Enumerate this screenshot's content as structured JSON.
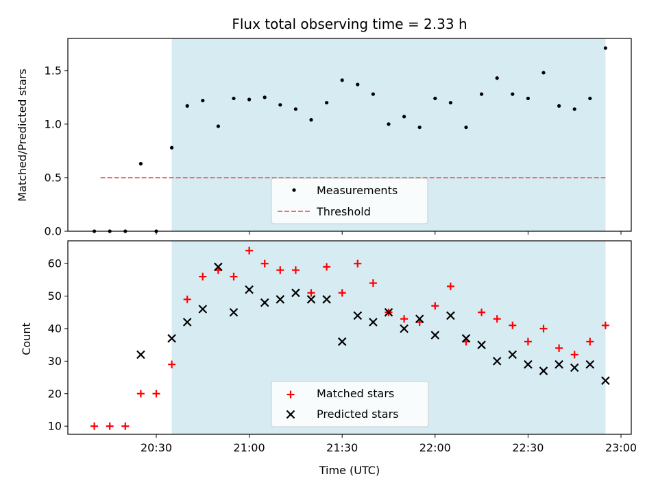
{
  "chart_data": [
    {
      "type": "scatter",
      "title": "Flux total observing time = 2.33 h",
      "xlabel": "",
      "ylabel": "Matched/Predicted stars",
      "ylim": [
        0,
        1.8
      ],
      "yticks": [
        "0.0",
        "0.5",
        "1.0",
        "1.5"
      ],
      "shaded_range": [
        "20:35",
        "22:55"
      ],
      "legend": {
        "placement": "lower-center",
        "entries": [
          "Measurements",
          "Threshold"
        ]
      },
      "threshold": {
        "name": "Threshold",
        "value": 0.5,
        "x_range": [
          "20:12",
          "22:55"
        ],
        "color": "#f07070"
      },
      "series": [
        {
          "name": "Measurements",
          "color": "#000000",
          "x": [
            "20:10",
            "20:15",
            "20:20",
            "20:25",
            "20:30",
            "20:35",
            "20:40",
            "20:45",
            "20:50",
            "20:55",
            "21:00",
            "21:05",
            "21:10",
            "21:15",
            "21:20",
            "21:25",
            "21:30",
            "21:35",
            "21:40",
            "21:45",
            "21:50",
            "21:55",
            "22:00",
            "22:05",
            "22:10",
            "22:15",
            "22:20",
            "22:25",
            "22:30",
            "22:35",
            "22:40",
            "22:45",
            "22:50",
            "22:55"
          ],
          "values": [
            0.0,
            0.0,
            0.0,
            0.63,
            0.0,
            0.78,
            1.17,
            1.22,
            0.98,
            1.24,
            1.23,
            1.25,
            1.18,
            1.14,
            1.04,
            1.2,
            1.41,
            1.37,
            1.28,
            1.0,
            1.07,
            0.97,
            1.24,
            1.2,
            0.97,
            1.28,
            1.43,
            1.28,
            1.24,
            1.48,
            1.17,
            1.14,
            1.24,
            1.71
          ]
        }
      ]
    },
    {
      "type": "scatter",
      "title": "",
      "xlabel": "Time (UTC)",
      "ylabel": "Count",
      "ylim": [
        7.5,
        67
      ],
      "yticks": [
        "10",
        "20",
        "30",
        "40",
        "50",
        "60"
      ],
      "xticks": [
        "20:30",
        "21:00",
        "21:30",
        "22:00",
        "22:30",
        "23:00"
      ],
      "shaded_range": [
        "20:35",
        "22:55"
      ],
      "legend": {
        "placement": "lower-center",
        "entries": [
          "Matched stars",
          "Predicted stars"
        ]
      },
      "series": [
        {
          "name": "Matched stars",
          "marker": "plus",
          "color": "#ff0000",
          "x": [
            "20:10",
            "20:15",
            "20:20",
            "20:25",
            "20:30",
            "20:35",
            "20:40",
            "20:45",
            "20:50",
            "20:55",
            "21:00",
            "21:05",
            "21:10",
            "21:15",
            "21:20",
            "21:25",
            "21:30",
            "21:35",
            "21:40",
            "21:45",
            "21:50",
            "21:55",
            "22:00",
            "22:05",
            "22:10",
            "22:15",
            "22:20",
            "22:25",
            "22:30",
            "22:35",
            "22:40",
            "22:45",
            "22:50",
            "22:55"
          ],
          "values": [
            10,
            10,
            10,
            20,
            20,
            29,
            49,
            56,
            58,
            56,
            64,
            60,
            58,
            58,
            51,
            59,
            51,
            60,
            54,
            45,
            43,
            42,
            47,
            53,
            36,
            45,
            43,
            41,
            36,
            40,
            34,
            32,
            36,
            41
          ]
        },
        {
          "name": "Predicted stars",
          "marker": "x",
          "color": "#000000",
          "x": [
            "20:25",
            "20:35",
            "20:40",
            "20:45",
            "20:50",
            "20:55",
            "21:00",
            "21:05",
            "21:10",
            "21:15",
            "21:20",
            "21:25",
            "21:30",
            "21:35",
            "21:40",
            "21:45",
            "21:50",
            "21:55",
            "22:00",
            "22:05",
            "22:10",
            "22:15",
            "22:20",
            "22:25",
            "22:30",
            "22:35",
            "22:40",
            "22:45",
            "22:50",
            "22:55"
          ],
          "values": [
            32,
            37,
            42,
            46,
            59,
            45,
            52,
            48,
            49,
            51,
            49,
            49,
            36,
            44,
            42,
            45,
            40,
            43,
            38,
            44,
            37,
            35,
            30,
            32,
            29,
            27,
            29,
            28,
            29,
            24
          ]
        }
      ]
    }
  ]
}
